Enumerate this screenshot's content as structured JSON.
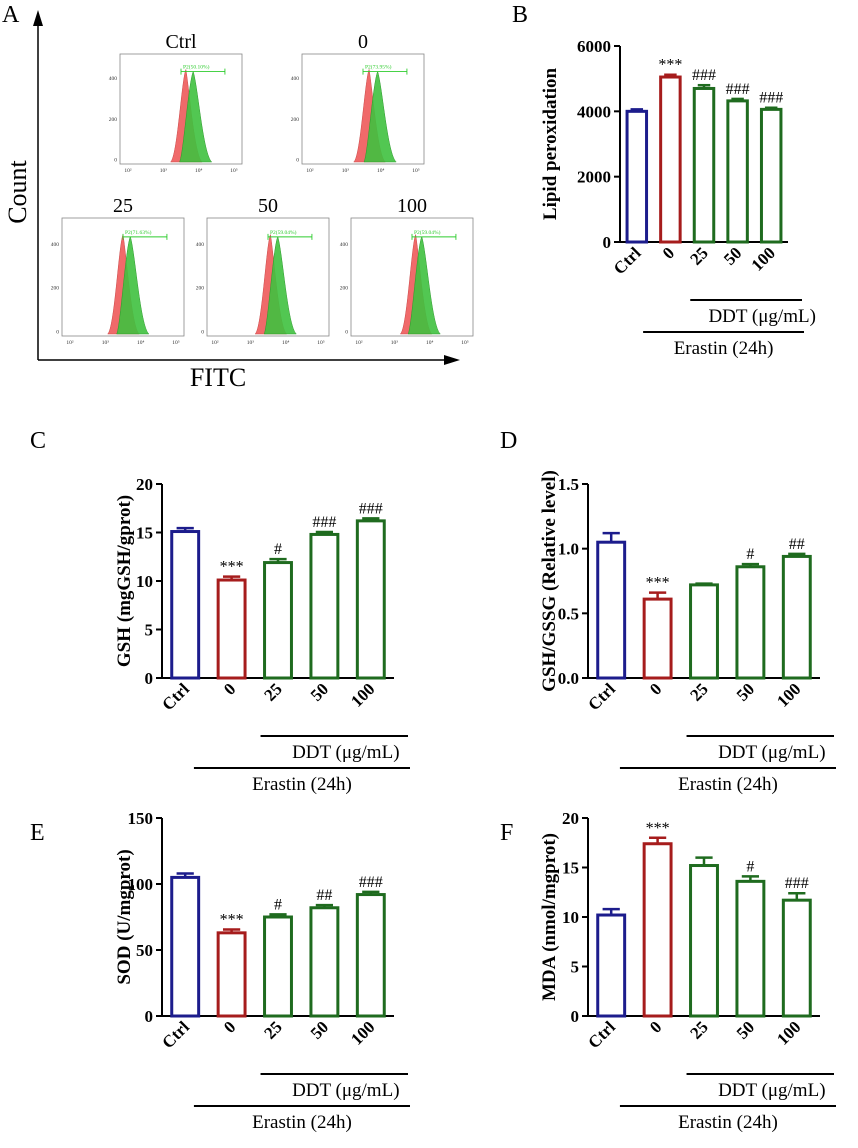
{
  "colors": {
    "ctrl": "#1c1c8c",
    "zero": "#a61c1c",
    "treat": "#1f6b1f",
    "hist_red": "#f06a6a",
    "hist_green": "#3fc13f",
    "gate": "#2ecc2e",
    "axis": "#000000"
  },
  "panel_a": {
    "letter": "A",
    "y_label": "Count",
    "x_label": "FITC",
    "histograms": [
      {
        "title": "Ctrl",
        "gate_label": "P2(50.10%)",
        "yticks": [
          "400",
          "200",
          "0"
        ],
        "xticks": [
          "10²",
          "10³",
          "10⁴",
          "10⁵"
        ]
      },
      {
        "title": "0",
        "gate_label": "P2(73.95%)",
        "yticks": [
          "400",
          "200",
          "0"
        ],
        "xticks": [
          "10²",
          "10³",
          "10⁴",
          "10⁵"
        ]
      },
      {
        "title": "25",
        "gate_label": "P2(71.63%)",
        "yticks": [
          "400",
          "200",
          "0"
        ],
        "xticks": [
          "10²",
          "10³",
          "10⁴",
          "10⁵"
        ]
      },
      {
        "title": "50",
        "gate_label": "P2(59.04%)",
        "yticks": [
          "400",
          "200",
          "0"
        ],
        "xticks": [
          "10²",
          "10³",
          "10⁴",
          "10⁵"
        ]
      },
      {
        "title": "100",
        "gate_label": "P2(59.04%)",
        "yticks": [
          "400",
          "200",
          "0"
        ],
        "xticks": [
          "10²",
          "10³",
          "10⁴",
          "10⁵"
        ]
      }
    ]
  },
  "chart_data": [
    {
      "type": "bar",
      "letter": "B",
      "ylabel": "Lipid peroxidation",
      "categories": [
        "Ctrl",
        "0",
        "25",
        "50",
        "100"
      ],
      "values": [
        4000,
        5050,
        4700,
        4320,
        4060
      ],
      "errors": [
        60,
        70,
        100,
        60,
        50
      ],
      "annotations": [
        "",
        "***",
        "###",
        "###",
        "###"
      ],
      "ylim": [
        0,
        6000
      ],
      "yticks": [
        "0",
        "2000",
        "4000",
        "6000"
      ],
      "ddt_label": "DDT (μg/mL)",
      "erastin_label": "Erastin (24h)"
    },
    {
      "type": "bar",
      "letter": "C",
      "ylabel": "GSH (mgGSH/gprot)",
      "categories": [
        "Ctrl",
        "0",
        "25",
        "50",
        "100"
      ],
      "values": [
        15.1,
        10.1,
        11.9,
        14.8,
        16.2
      ],
      "errors": [
        0.35,
        0.35,
        0.35,
        0.25,
        0.25
      ],
      "annotations": [
        "",
        "***",
        "#",
        "###",
        "###"
      ],
      "ylim": [
        0,
        20
      ],
      "yticks": [
        "0",
        "5",
        "10",
        "15",
        "20"
      ],
      "ddt_label": "DDT (μg/mL)",
      "erastin_label": "Erastin (24h)"
    },
    {
      "type": "bar",
      "letter": "D",
      "ylabel": "GSH/GSSG (Relative level)",
      "categories": [
        "Ctrl",
        "0",
        "25",
        "50",
        "100"
      ],
      "values": [
        1.05,
        0.61,
        0.72,
        0.86,
        0.94
      ],
      "errors": [
        0.07,
        0.05,
        0.01,
        0.02,
        0.02
      ],
      "annotations": [
        "",
        "***",
        "",
        "#",
        "##"
      ],
      "ylim": [
        0,
        1.5
      ],
      "yticks": [
        "0.0",
        "0.5",
        "1.0",
        "1.5"
      ],
      "ddt_label": "DDT (μg/mL)",
      "erastin_label": "Erastin (24h)"
    },
    {
      "type": "bar",
      "letter": "E",
      "ylabel": "SOD (U/mgprot)",
      "categories": [
        "Ctrl",
        "0",
        "25",
        "50",
        "100"
      ],
      "values": [
        105,
        63,
        75,
        82,
        92
      ],
      "errors": [
        3,
        2.5,
        2,
        2,
        2
      ],
      "annotations": [
        "",
        "***",
        "#",
        "##",
        "###"
      ],
      "ylim": [
        0,
        150
      ],
      "yticks": [
        "0",
        "50",
        "100",
        "150"
      ],
      "ddt_label": "DDT (μg/mL)",
      "erastin_label": "Erastin (24h)"
    },
    {
      "type": "bar",
      "letter": "F",
      "ylabel": "MDA (nmol/mgprot)",
      "categories": [
        "Ctrl",
        "0",
        "25",
        "50",
        "100"
      ],
      "values": [
        10.2,
        17.4,
        15.2,
        13.6,
        11.7
      ],
      "errors": [
        0.6,
        0.6,
        0.8,
        0.5,
        0.7
      ],
      "annotations": [
        "",
        "***",
        "",
        "#",
        "###"
      ],
      "ylim": [
        0,
        20
      ],
      "yticks": [
        "0",
        "5",
        "10",
        "15",
        "20"
      ],
      "ddt_label": "DDT (μg/mL)",
      "erastin_label": "Erastin (24h)"
    }
  ]
}
